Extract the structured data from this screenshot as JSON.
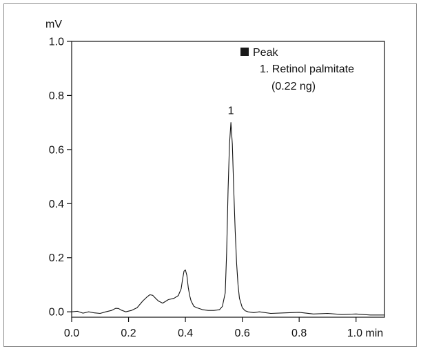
{
  "chart_data": {
    "type": "line",
    "title": "",
    "xlabel": "",
    "ylabel": "",
    "y_unit": "mV",
    "x_unit": "min",
    "xlim": [
      0.0,
      1.1
    ],
    "ylim": [
      -0.02,
      1.0
    ],
    "x_ticks": [
      0.0,
      0.2,
      0.4,
      0.6,
      0.8,
      1.0
    ],
    "x_tick_labels": [
      "0.0",
      "0.2",
      "0.4",
      "0.6",
      "0.8",
      "1.0 min"
    ],
    "y_ticks": [
      0.0,
      0.2,
      0.4,
      0.6,
      0.8,
      1.0
    ],
    "y_tick_labels": [
      "0.0",
      "0.2",
      "0.4",
      "0.6",
      "0.8",
      "1.0"
    ],
    "grid": false,
    "legend": {
      "placement": "top-right",
      "marker_color": "#1a1a1a",
      "header": "Peak",
      "entries": [
        "1. Retinol palmitate",
        "(0.22 ng)"
      ]
    },
    "annotations": [
      {
        "text": "1",
        "x": 0.56,
        "y": 0.7
      }
    ],
    "series": [
      {
        "color": "#111111",
        "x": [
          0.0,
          0.02,
          0.04,
          0.06,
          0.08,
          0.1,
          0.12,
          0.14,
          0.155,
          0.165,
          0.175,
          0.19,
          0.21,
          0.23,
          0.25,
          0.265,
          0.275,
          0.285,
          0.295,
          0.305,
          0.32,
          0.34,
          0.36,
          0.375,
          0.385,
          0.39,
          0.395,
          0.4,
          0.405,
          0.41,
          0.415,
          0.42,
          0.43,
          0.44,
          0.46,
          0.48,
          0.5,
          0.52,
          0.53,
          0.54,
          0.545,
          0.55,
          0.555,
          0.56,
          0.565,
          0.57,
          0.575,
          0.58,
          0.585,
          0.59,
          0.6,
          0.61,
          0.62,
          0.64,
          0.66,
          0.7,
          0.75,
          0.8,
          0.85,
          0.9,
          0.95,
          1.0,
          1.05,
          1.1
        ],
        "y": [
          0.0,
          0.002,
          -0.005,
          0.0,
          -0.004,
          -0.006,
          0.0,
          0.005,
          0.013,
          0.012,
          0.006,
          0.0,
          0.005,
          0.015,
          0.04,
          0.055,
          0.063,
          0.061,
          0.05,
          0.04,
          0.032,
          0.045,
          0.05,
          0.06,
          0.085,
          0.12,
          0.15,
          0.155,
          0.135,
          0.09,
          0.06,
          0.04,
          0.02,
          0.015,
          0.008,
          0.005,
          0.005,
          0.008,
          0.02,
          0.07,
          0.22,
          0.45,
          0.62,
          0.7,
          0.62,
          0.45,
          0.3,
          0.18,
          0.1,
          0.05,
          0.015,
          0.004,
          0.0,
          -0.003,
          0.0,
          -0.006,
          -0.004,
          -0.002,
          -0.008,
          -0.006,
          -0.01,
          -0.008,
          -0.012,
          -0.012
        ]
      }
    ]
  }
}
